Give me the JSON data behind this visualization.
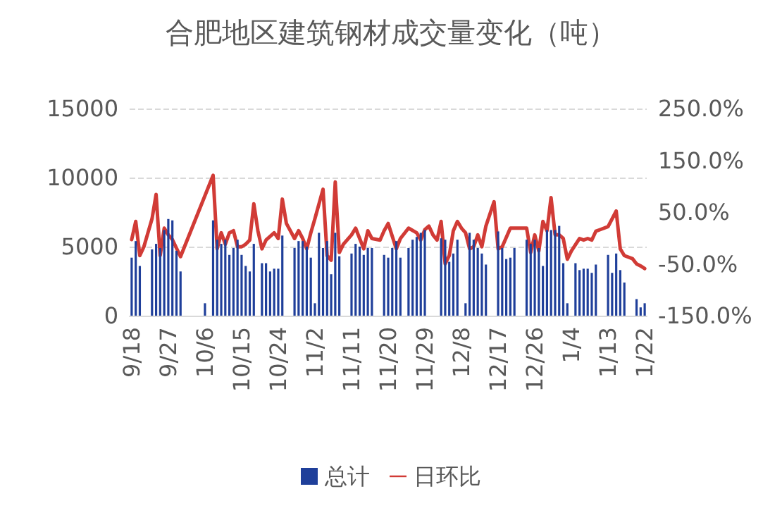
{
  "chart_data": {
    "type": "bar",
    "title": "合肥地区建筑钢材成交量变化（吨）",
    "categories": [
      "9/18",
      null,
      null,
      null,
      null,
      null,
      null,
      null,
      null,
      "9/27",
      null,
      null,
      null,
      null,
      null,
      null,
      null,
      null,
      "10/6",
      null,
      null,
      null,
      null,
      null,
      null,
      null,
      null,
      "10/15",
      null,
      null,
      null,
      null,
      null,
      null,
      null,
      null,
      "10/24",
      null,
      null,
      null,
      null,
      null,
      null,
      null,
      null,
      "11/2",
      null,
      null,
      null,
      null,
      null,
      null,
      null,
      null,
      "11/11",
      null,
      null,
      null,
      null,
      null,
      null,
      null,
      null,
      "11/20",
      null,
      null,
      null,
      null,
      null,
      null,
      null,
      null,
      "11/29",
      null,
      null,
      null,
      null,
      null,
      null,
      null,
      null,
      "12/8",
      null,
      null,
      null,
      null,
      null,
      null,
      null,
      null,
      "12/17",
      null,
      null,
      null,
      null,
      null,
      null,
      null,
      null,
      "12/26",
      null,
      null,
      null,
      null,
      null,
      null,
      null,
      null,
      "1/4",
      null,
      null,
      null,
      null,
      null,
      null,
      null,
      null,
      "1/13",
      null,
      null,
      null,
      null,
      null,
      null,
      null,
      null,
      "1/22"
    ],
    "series": [
      {
        "name": "总计",
        "color": "#1f3f9a",
        "values": [
          4200,
          5400,
          3600,
          null,
          null,
          4800,
          5200,
          4900,
          6200,
          7000,
          6900,
          4700,
          3200,
          null,
          null,
          null,
          null,
          null,
          900,
          null,
          6900,
          5500,
          5200,
          5500,
          4400,
          4900,
          5500,
          4400,
          3600,
          3200,
          5200,
          null,
          3800,
          3800,
          3200,
          3400,
          3400,
          5800,
          null,
          null,
          4900,
          5400,
          5400,
          5000,
          4200,
          900,
          6000,
          4900,
          5400,
          3000,
          6000,
          4300,
          null,
          null,
          4500,
          5200,
          5000,
          4400,
          4900,
          4900,
          null,
          null,
          4400,
          4200,
          4900,
          5400,
          4200,
          null,
          4900,
          5500,
          5700,
          6000,
          6200,
          null,
          null,
          null,
          5600,
          5500,
          3900,
          4500,
          5500,
          null,
          900,
          6000,
          5500,
          4900,
          4500,
          3700,
          null,
          null,
          6100,
          4900,
          4100,
          4200,
          4900,
          null,
          null,
          5500,
          5200,
          5500,
          4900,
          3600,
          6200,
          6200,
          6200,
          6500,
          3800,
          900,
          null,
          3800,
          3300,
          3400,
          3400,
          3100,
          3700,
          null,
          null,
          4400,
          3100,
          4500,
          3300,
          2400,
          null,
          null,
          1200,
          600,
          900
        ]
      },
      {
        "name": "日环比",
        "type": "line",
        "axis": "y2",
        "color": "#d13b36",
        "values": [
          -3,
          32,
          -34,
          -17,
          10,
          37,
          84,
          -34,
          19,
          6,
          -3,
          null,
          -36,
          null,
          null,
          null,
          null,
          null,
          null,
          null,
          121,
          -21,
          10,
          -12,
          10,
          14,
          -17,
          -17,
          -12,
          -4,
          66,
          14,
          -21,
          -4,
          null,
          10,
          -1,
          75,
          28,
          null,
          -1,
          14,
          -1,
          -21,
          10,
          37,
          null,
          94,
          -34,
          -43,
          108,
          -28,
          -12,
          null,
          6,
          19,
          null,
          -21,
          14,
          -1,
          null,
          -4,
          14,
          28,
          null,
          -21,
          -1,
          null,
          19,
          null,
          10,
          -4,
          16,
          23,
          6,
          -4,
          32,
          -50,
          -34,
          14,
          32,
          19,
          10,
          -21,
          -17,
          6,
          -17,
          23,
          null,
          70,
          -21,
          -17,
          null,
          19,
          19,
          null,
          null,
          19,
          -28,
          6,
          -25,
          32,
          14,
          78,
          6,
          6,
          -1,
          -41,
          -25,
          null,
          -1,
          -4,
          -1,
          -4,
          13,
          16,
          null,
          22,
          null,
          52,
          -21,
          -34,
          null,
          -40,
          -50,
          -54,
          -59
        ]
      }
    ],
    "ylim": [
      0,
      15000
    ],
    "yticks": [
      0,
      5000,
      10000,
      15000
    ],
    "y2lim": [
      -150,
      250
    ],
    "y2ticks": [
      {
        "value": -150,
        "label": "-150.0%"
      },
      {
        "value": -50,
        "label": "-50.0%"
      },
      {
        "value": 50,
        "label": "50.0%"
      },
      {
        "value": 150,
        "label": "150.0%"
      },
      {
        "value": 250,
        "label": "250.0%"
      }
    ],
    "grid": "y",
    "legend": "bottom",
    "marker": "none",
    "line_style": "solid"
  }
}
